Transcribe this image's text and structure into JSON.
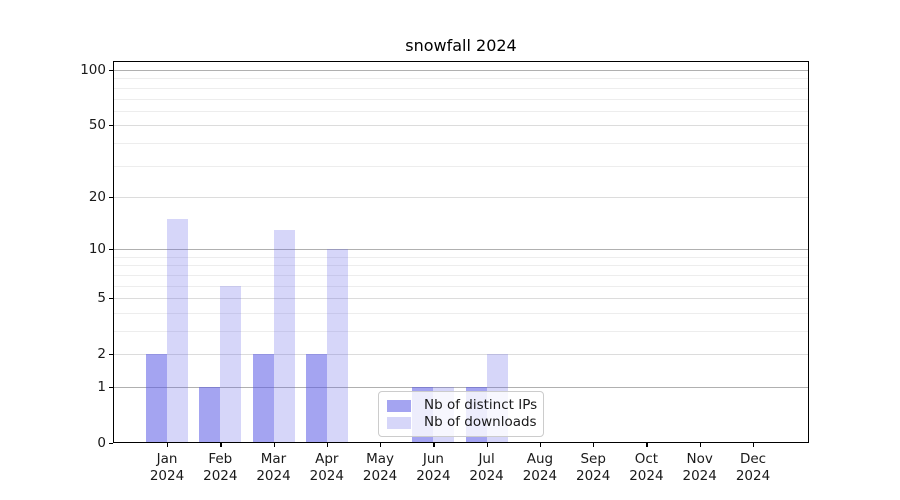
{
  "title": "snowfall 2024",
  "chart_data": {
    "type": "bar",
    "title": "snowfall 2024",
    "categories": [
      "Jan 2024",
      "Feb 2024",
      "Mar 2024",
      "Apr 2024",
      "May 2024",
      "Jun 2024",
      "Jul 2024",
      "Aug 2024",
      "Sep 2024",
      "Oct 2024",
      "Nov 2024",
      "Dec 2024"
    ],
    "x_tick_months": [
      "Jan",
      "Feb",
      "Mar",
      "Apr",
      "May",
      "Jun",
      "Jul",
      "Aug",
      "Sep",
      "Oct",
      "Nov",
      "Dec"
    ],
    "x_tick_year": "2024",
    "series": [
      {
        "name": "Nb of distinct IPs",
        "color": "rgba(90,90,230,0.55)",
        "values": [
          2,
          1,
          2,
          2,
          0,
          1,
          1,
          0,
          0,
          0,
          0,
          0
        ]
      },
      {
        "name": "Nb of downloads",
        "color": "rgba(90,90,230,0.25)",
        "values": [
          15,
          6,
          13,
          10,
          0,
          1,
          2,
          0,
          0,
          0,
          0,
          0
        ]
      }
    ],
    "y_axis": {
      "scale": "log1p",
      "label_ticks": [
        100,
        50,
        20,
        10,
        5,
        2,
        1,
        0
      ],
      "decade_gridlines": [
        1,
        10,
        100
      ],
      "intermediate_gridlines": [
        2,
        5,
        20,
        50
      ],
      "minor_gridlines": [
        3,
        4,
        6,
        7,
        8,
        9,
        30,
        40,
        60,
        70,
        80,
        90
      ],
      "range": [
        0,
        110
      ]
    },
    "legend": {
      "position": "lower center-left",
      "entries": [
        "Nb of distinct IPs",
        "Nb of downloads"
      ]
    },
    "grid": true,
    "colors": {
      "grid_decade": "#b0b0b0",
      "grid_intermediate": "#dcdcdc",
      "grid_minor": "#ededed",
      "spine": "#000000",
      "text": "#1a1a1a",
      "legend_border": "#cccccc",
      "legend_background": "rgba(255,255,255,0.8)"
    }
  }
}
